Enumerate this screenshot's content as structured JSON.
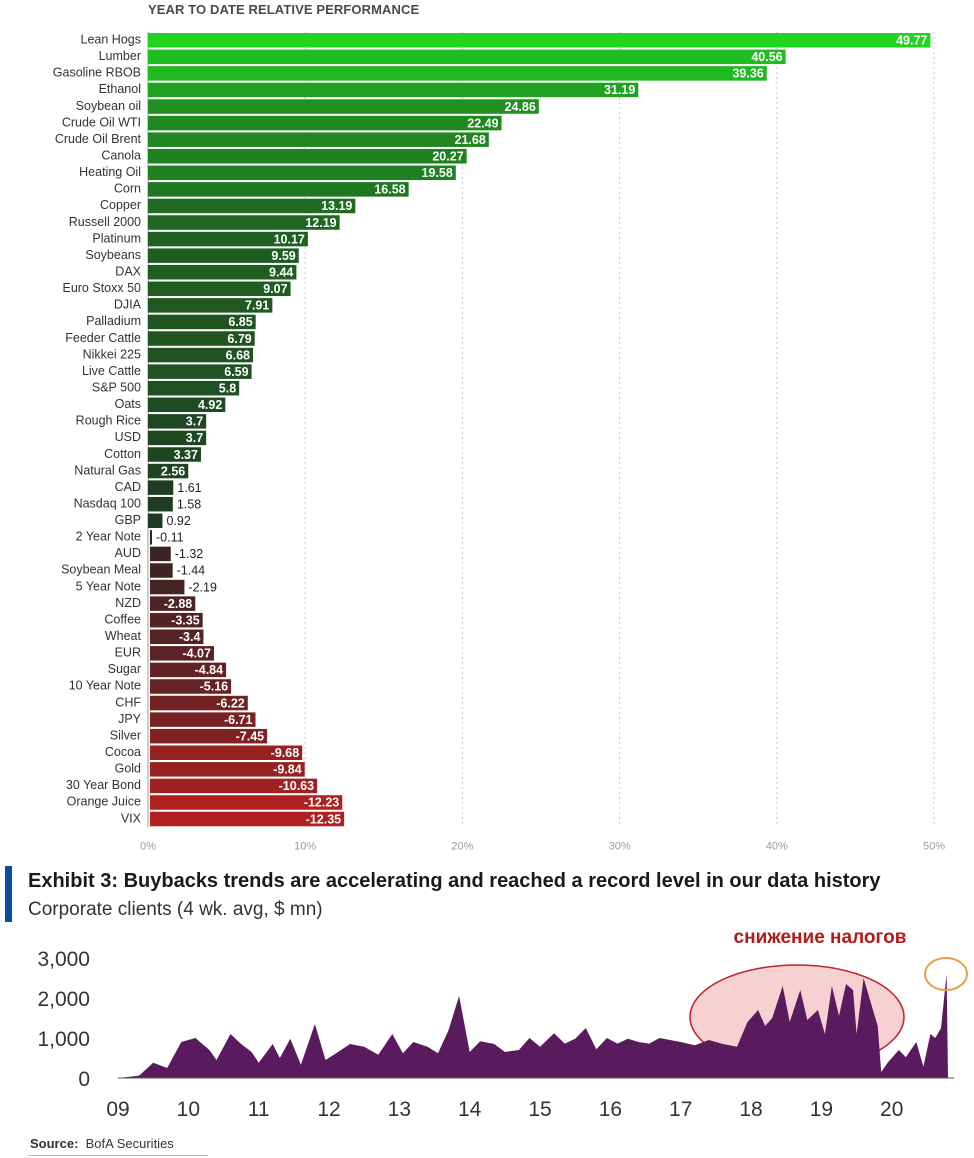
{
  "chart_data": [
    {
      "type": "bar",
      "title": "YEAR TO DATE RELATIVE PERFORMANCE",
      "orientation": "horizontal",
      "categories": [
        "Lean Hogs",
        "Lumber",
        "Gasoline RBOB",
        "Ethanol",
        "Soybean oil",
        "Crude Oil WTI",
        "Crude Oil Brent",
        "Canola",
        "Heating Oil",
        "Corn",
        "Copper",
        "Russell 2000",
        "Platinum",
        "Soybeans",
        "DAX",
        "Euro Stoxx 50",
        "DJIA",
        "Palladium",
        "Feeder Cattle",
        "Nikkei 225",
        "Live Cattle",
        "S&P 500",
        "Oats",
        "Rough Rice",
        "USD",
        "Cotton",
        "Natural Gas",
        "CAD",
        "Nasdaq 100",
        "GBP",
        "2 Year Note",
        "AUD",
        "Soybean Meal",
        "5 Year Note",
        "NZD",
        "Coffee",
        "Wheat",
        "EUR",
        "Sugar",
        "10 Year Note",
        "CHF",
        "JPY",
        "Silver",
        "Cocoa",
        "Gold",
        "30 Year Bond",
        "Orange Juice",
        "VIX"
      ],
      "values": [
        49.77,
        40.56,
        39.36,
        31.19,
        24.86,
        22.49,
        21.68,
        20.27,
        19.58,
        16.58,
        13.19,
        12.19,
        10.17,
        9.59,
        9.44,
        9.07,
        7.91,
        6.85,
        6.79,
        6.68,
        6.59,
        5.8,
        4.92,
        3.7,
        3.7,
        3.37,
        2.56,
        1.61,
        1.58,
        0.92,
        -0.11,
        -1.32,
        -1.44,
        -2.19,
        -2.88,
        -3.35,
        -3.4,
        -4.07,
        -4.84,
        -5.16,
        -6.22,
        -6.71,
        -7.45,
        -9.68,
        -9.84,
        -10.63,
        -12.23,
        -12.35
      ],
      "value_labels": [
        "49.77",
        "40.56",
        "39.36",
        "31.19",
        "24.86",
        "22.49",
        "21.68",
        "20.27",
        "19.58",
        "16.58",
        "13.19",
        "12.19",
        "10.17",
        "9.59",
        "9.44",
        "9.07",
        "7.91",
        "6.85",
        "6.79",
        "6.68",
        "6.59",
        "5.8",
        "4.92",
        "3.7",
        "3.7",
        "3.37",
        "2.56",
        "1.61",
        "1.58",
        "0.92",
        "-0.11",
        "-1.32",
        "-1.44",
        "-2.19",
        "-2.88",
        "-3.35",
        "-3.4",
        "-4.07",
        "-4.84",
        "-5.16",
        "-6.22",
        "-6.71",
        "-7.45",
        "-9.68",
        "-9.84",
        "-10.63",
        "-12.23",
        "-12.35"
      ],
      "xlim": [
        0,
        50
      ],
      "xticks": [
        "0%",
        "10%",
        "20%",
        "30%",
        "40%",
        "50%"
      ],
      "grid": true,
      "colors": {
        "positive_high": "#1fd51f",
        "positive_low": "#1f3322",
        "negative_low": "#2a2426",
        "negative_high": "#b02020"
      }
    },
    {
      "type": "area",
      "title": "Exhibit 3: Buybacks trends are accelerating and reached a record level in our data history",
      "subtitle": "Corporate clients (4 wk. avg, $ mn)",
      "x_tick_labels": [
        "09",
        "10",
        "11",
        "12",
        "13",
        "14",
        "15",
        "16",
        "17",
        "18",
        "19",
        "20"
      ],
      "y_tick_labels": [
        "3,000",
        "2,000",
        "1,000",
        "0"
      ],
      "ylim": [
        0,
        3000
      ],
      "annotation": "снижение налогов",
      "source_label": "Source:",
      "source_text": "BofA Securities",
      "color": "#5a1a5e",
      "series_approx": [
        [
          2009.0,
          0
        ],
        [
          2009.3,
          60
        ],
        [
          2009.5,
          380
        ],
        [
          2009.7,
          250
        ],
        [
          2009.9,
          900
        ],
        [
          2010.1,
          1000
        ],
        [
          2010.3,
          700
        ],
        [
          2010.4,
          450
        ],
        [
          2010.6,
          1100
        ],
        [
          2010.75,
          850
        ],
        [
          2010.9,
          650
        ],
        [
          2011.0,
          380
        ],
        [
          2011.2,
          850
        ],
        [
          2011.3,
          500
        ],
        [
          2011.45,
          980
        ],
        [
          2011.6,
          330
        ],
        [
          2011.8,
          1350
        ],
        [
          2011.95,
          450
        ],
        [
          2012.1,
          620
        ],
        [
          2012.3,
          850
        ],
        [
          2012.5,
          780
        ],
        [
          2012.7,
          580
        ],
        [
          2012.9,
          1100
        ],
        [
          2013.05,
          620
        ],
        [
          2013.2,
          900
        ],
        [
          2013.4,
          780
        ],
        [
          2013.55,
          620
        ],
        [
          2013.7,
          1200
        ],
        [
          2013.85,
          2050
        ],
        [
          2014.0,
          650
        ],
        [
          2014.15,
          920
        ],
        [
          2014.35,
          850
        ],
        [
          2014.5,
          650
        ],
        [
          2014.7,
          700
        ],
        [
          2014.85,
          1000
        ],
        [
          2015.0,
          780
        ],
        [
          2015.2,
          1120
        ],
        [
          2015.35,
          860
        ],
        [
          2015.5,
          980
        ],
        [
          2015.65,
          1250
        ],
        [
          2015.8,
          720
        ],
        [
          2015.95,
          1000
        ],
        [
          2016.1,
          860
        ],
        [
          2016.25,
          980
        ],
        [
          2016.4,
          900
        ],
        [
          2016.55,
          860
        ],
        [
          2016.7,
          1000
        ],
        [
          2016.85,
          950
        ],
        [
          2017.0,
          900
        ],
        [
          2017.2,
          820
        ],
        [
          2017.4,
          950
        ],
        [
          2017.6,
          850
        ],
        [
          2017.8,
          780
        ],
        [
          2017.95,
          1400
        ],
        [
          2018.1,
          1700
        ],
        [
          2018.2,
          1300
        ],
        [
          2018.3,
          1500
        ],
        [
          2018.45,
          2300
        ],
        [
          2018.55,
          1400
        ],
        [
          2018.7,
          2200
        ],
        [
          2018.8,
          1450
        ],
        [
          2018.95,
          1700
        ],
        [
          2019.05,
          1100
        ],
        [
          2019.15,
          2300
        ],
        [
          2019.25,
          1550
        ],
        [
          2019.35,
          2350
        ],
        [
          2019.45,
          2200
        ],
        [
          2019.5,
          1100
        ],
        [
          2019.6,
          2500
        ],
        [
          2019.7,
          1900
        ],
        [
          2019.8,
          1300
        ],
        [
          2019.85,
          150
        ],
        [
          2019.95,
          400
        ],
        [
          2020.1,
          700
        ],
        [
          2020.2,
          520
        ],
        [
          2020.35,
          900
        ],
        [
          2020.45,
          280
        ],
        [
          2020.55,
          1100
        ],
        [
          2020.62,
          1000
        ],
        [
          2020.7,
          1250
        ],
        [
          2020.78,
          2600
        ],
        [
          2020.8,
          0
        ]
      ]
    }
  ]
}
